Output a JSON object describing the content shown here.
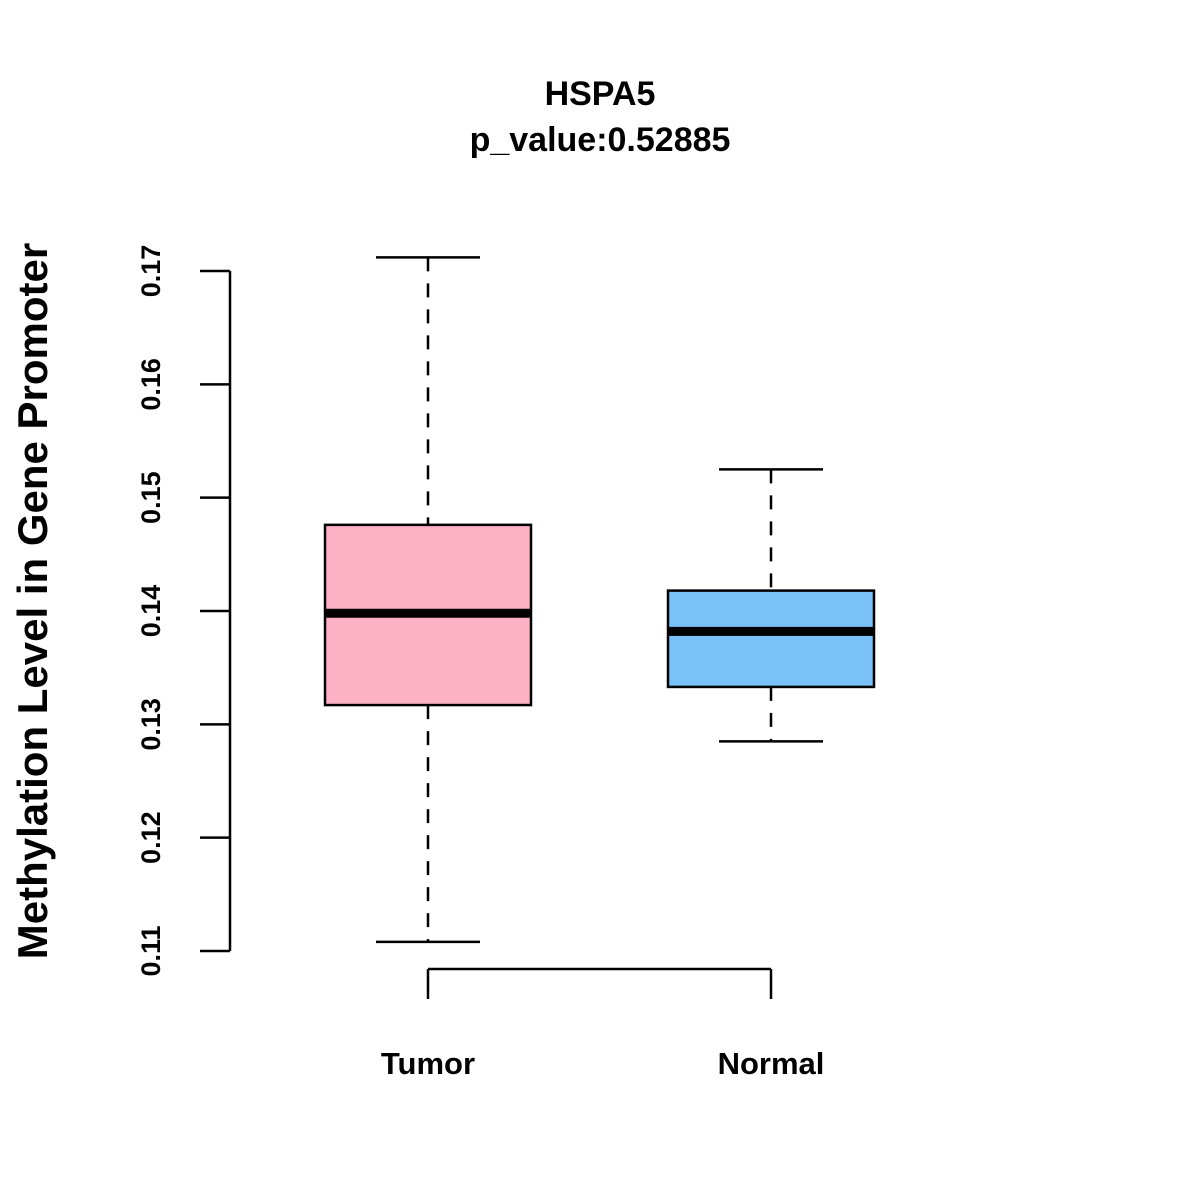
{
  "chart_data": {
    "type": "boxplot",
    "title": "HSPA5",
    "subtitle": "p_value:0.52885",
    "xlabel": "",
    "ylabel": "Methylation Level in Gene Promoter",
    "ylim": [
      0.11,
      0.17
    ],
    "yticks": [
      0.11,
      0.12,
      0.13,
      0.14,
      0.15,
      0.16,
      0.17
    ],
    "ytick_labels": [
      "0.11",
      "0.12",
      "0.13",
      "0.14",
      "0.15",
      "0.16",
      "0.17"
    ],
    "categories": [
      "Tumor",
      "Normal"
    ],
    "series": [
      {
        "name": "Tumor",
        "min": 0.1108,
        "q1": 0.1317,
        "median": 0.1398,
        "q3": 0.1476,
        "max": 0.1712,
        "color": "#FDB1C4"
      },
      {
        "name": "Normal",
        "min": 0.1285,
        "q1": 0.1333,
        "median": 0.1382,
        "q3": 0.1418,
        "max": 0.1525,
        "color": "#79C2F8"
      }
    ],
    "grid": false
  }
}
